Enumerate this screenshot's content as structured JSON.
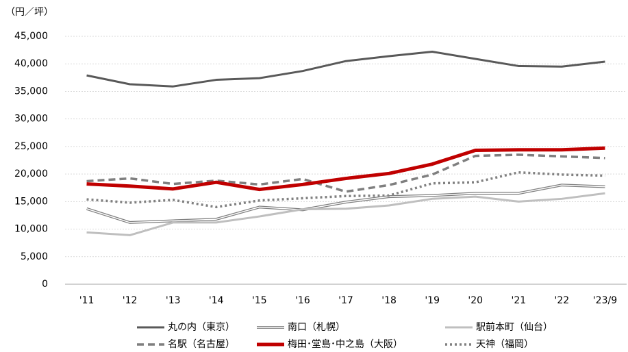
{
  "chart_data": {
    "type": "line",
    "y_unit": "（円／坪）",
    "categories": [
      "'11",
      "'12",
      "'13",
      "'14",
      "'15",
      "'16",
      "'17",
      "'18",
      "'19",
      "'20",
      "'21",
      "'22",
      "'23/9"
    ],
    "ylim": [
      0,
      45000
    ],
    "yticks": [
      0,
      {
        "value": 5000,
        "label": "5,000"
      },
      {
        "value": 10000,
        "label": "10,000"
      },
      {
        "value": 15000,
        "label": "15,000"
      },
      {
        "value": 20000,
        "label": "20,000"
      },
      {
        "value": 25000,
        "label": "25,000"
      },
      {
        "value": 30000,
        "label": "30,000"
      },
      {
        "value": 35000,
        "label": "35,000"
      },
      {
        "value": 40000,
        "label": "40,000"
      },
      {
        "value": 45000,
        "label": "45,000"
      }
    ],
    "grid": true,
    "series": [
      {
        "name": "丸の内（東京）",
        "color": "#595959",
        "style": "solid",
        "width": 3,
        "values": [
          37900,
          36300,
          35900,
          37100,
          37400,
          38700,
          40500,
          41400,
          42200,
          40900,
          39600,
          39500,
          40400
        ]
      },
      {
        "name": "南口（札幌）",
        "color": "#7f7f7f",
        "style": "double",
        "width": 4,
        "values": [
          13700,
          11200,
          11500,
          11800,
          14000,
          13500,
          14900,
          15900,
          16100,
          16500,
          16500,
          18000,
          17700
        ]
      },
      {
        "name": "駅前本町（仙台）",
        "color": "#bfbfbf",
        "style": "solid",
        "width": 3,
        "values": [
          9400,
          8900,
          11200,
          11200,
          12300,
          13600,
          13700,
          14300,
          15500,
          15900,
          15000,
          15500,
          16500
        ]
      },
      {
        "name": "名駅（名古屋）",
        "color": "#7f7f7f",
        "style": "dashed",
        "width": 3.5,
        "values": [
          18700,
          19200,
          18200,
          18800,
          18100,
          19100,
          16800,
          18000,
          19900,
          23300,
          23500,
          23200,
          22900
        ]
      },
      {
        "name": "梅田･堂島･中之島（大阪）",
        "color": "#c00000",
        "style": "solid",
        "width": 5,
        "values": [
          18200,
          17800,
          17300,
          18500,
          17200,
          18100,
          19200,
          20100,
          21800,
          24300,
          24400,
          24400,
          24700
        ]
      },
      {
        "name": "天神（福岡）",
        "color": "#808080",
        "style": "dotted",
        "width": 3.5,
        "values": [
          15400,
          14800,
          15300,
          14000,
          15200,
          15600,
          16000,
          16100,
          18300,
          18500,
          20300,
          19900,
          19700
        ]
      }
    ]
  }
}
